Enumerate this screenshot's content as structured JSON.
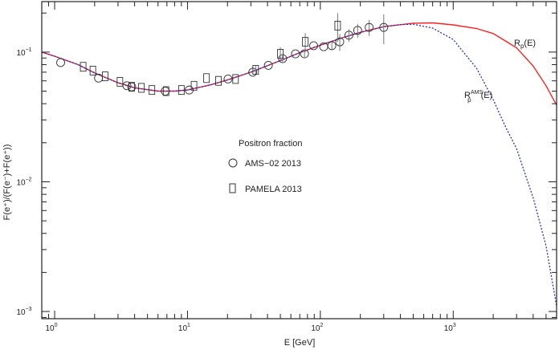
{
  "chart_data": {
    "type": "scatter",
    "title": "",
    "xlabel": "E [GeV]",
    "ylabel": "F(e⁺)/(F(e⁻)+F(e⁺))",
    "xscale": "log",
    "yscale": "log",
    "xlim": [
      0.8,
      6000
    ],
    "ylim": [
      0.00088,
      0.245
    ],
    "grid": false,
    "x_tick_labels": [
      {
        "v": 1,
        "base": "10",
        "exp": "0"
      },
      {
        "v": 10,
        "base": "10",
        "exp": "1"
      },
      {
        "v": 100,
        "base": "10",
        "exp": "2"
      },
      {
        "v": 1000,
        "base": "10",
        "exp": "3"
      }
    ],
    "y_tick_labels": [
      {
        "v": 0.1,
        "base": "10",
        "exp": "−1"
      },
      {
        "v": 0.01,
        "base": "10",
        "exp": "−2"
      },
      {
        "v": 0.001,
        "base": "10",
        "exp": "−3"
      }
    ],
    "legend": {
      "title": "Positron fraction",
      "placement": "center",
      "entries": [
        {
          "label": "AMS−02 2013",
          "marker": "circle"
        },
        {
          "label": "PAMELA 2013",
          "marker": "square"
        }
      ]
    },
    "series": [
      {
        "name": "AMS−02 2013",
        "marker": "circle",
        "points": [
          [
            1.11,
            0.083,
            0
          ],
          [
            2.14,
            0.063,
            0
          ],
          [
            3.5,
            0.055,
            0
          ],
          [
            3.8,
            0.054,
            0
          ],
          [
            6.8,
            0.05,
            0
          ],
          [
            10.3,
            0.051,
            0
          ],
          [
            20.2,
            0.062,
            0
          ],
          [
            31,
            0.07,
            0
          ],
          [
            40.6,
            0.079,
            0
          ],
          [
            52,
            0.089,
            0.005
          ],
          [
            65,
            0.097,
            0
          ],
          [
            76,
            0.097,
            0.006
          ],
          [
            89,
            0.112,
            0
          ],
          [
            106,
            0.11,
            0
          ],
          [
            122,
            0.112,
            0.008
          ],
          [
            140,
            0.12,
            0.018
          ],
          [
            164,
            0.135,
            0.015
          ],
          [
            191,
            0.147,
            0.018
          ],
          [
            233,
            0.155,
            0.022
          ],
          [
            300,
            0.155,
            0.04
          ]
        ]
      },
      {
        "name": "PAMELA 2013",
        "marker": "square",
        "points": [
          [
            1.64,
            0.077,
            0
          ],
          [
            1.94,
            0.072,
            0
          ],
          [
            2.4,
            0.065,
            0
          ],
          [
            3.1,
            0.059,
            0
          ],
          [
            3.8,
            0.054,
            0
          ],
          [
            4.5,
            0.053,
            0
          ],
          [
            5.4,
            0.051,
            0
          ],
          [
            6.9,
            0.05,
            0
          ],
          [
            9.0,
            0.051,
            0
          ],
          [
            11.2,
            0.055,
            0
          ],
          [
            13.9,
            0.063,
            0
          ],
          [
            17.1,
            0.06,
            0
          ],
          [
            23,
            0.062,
            0
          ],
          [
            32.6,
            0.073,
            0.006
          ],
          [
            50,
            0.097,
            0.012
          ],
          [
            77,
            0.12,
            0.02
          ],
          [
            135,
            0.16,
            0.04
          ]
        ]
      }
    ],
    "curves": [
      {
        "name": "Rp(E)",
        "label_base": "R",
        "label_sub": "p",
        "label_sup": "",
        "label_tail": "(E)",
        "color": "#ff2020",
        "style": "solid",
        "points": [
          [
            0.8,
            0.1
          ],
          [
            1,
            0.093
          ],
          [
            1.5,
            0.08
          ],
          [
            2,
            0.069
          ],
          [
            3,
            0.058
          ],
          [
            4,
            0.053
          ],
          [
            6,
            0.05
          ],
          [
            8,
            0.05
          ],
          [
            10,
            0.051
          ],
          [
            15,
            0.056
          ],
          [
            20,
            0.061
          ],
          [
            30,
            0.07
          ],
          [
            50,
            0.086
          ],
          [
            70,
            0.099
          ],
          [
            100,
            0.113
          ],
          [
            150,
            0.13
          ],
          [
            200,
            0.142
          ],
          [
            300,
            0.157
          ],
          [
            500,
            0.167
          ],
          [
            700,
            0.168
          ],
          [
            1000,
            0.162
          ],
          [
            1500,
            0.152
          ],
          [
            2000,
            0.139
          ],
          [
            3000,
            0.108
          ],
          [
            4000,
            0.078
          ],
          [
            5000,
            0.055
          ],
          [
            6000,
            0.039
          ]
        ]
      },
      {
        "name": "Rp^AMS(E)",
        "label_base": "R",
        "label_sub": "p",
        "label_sup": "AMS",
        "label_tail": "(E)",
        "color": "#2a2ad0",
        "style": "dotted",
        "points": [
          [
            0.8,
            0.1
          ],
          [
            1,
            0.093
          ],
          [
            1.5,
            0.08
          ],
          [
            2,
            0.069
          ],
          [
            3,
            0.058
          ],
          [
            4,
            0.053
          ],
          [
            6,
            0.05
          ],
          [
            8,
            0.05
          ],
          [
            10,
            0.051
          ],
          [
            15,
            0.056
          ],
          [
            20,
            0.061
          ],
          [
            30,
            0.07
          ],
          [
            50,
            0.086
          ],
          [
            70,
            0.099
          ],
          [
            100,
            0.113
          ],
          [
            150,
            0.13
          ],
          [
            200,
            0.142
          ],
          [
            300,
            0.157
          ],
          [
            400,
            0.163
          ],
          [
            500,
            0.164
          ],
          [
            700,
            0.153
          ],
          [
            1000,
            0.125
          ],
          [
            1500,
            0.075
          ],
          [
            2000,
            0.043
          ],
          [
            2500,
            0.026
          ],
          [
            3000,
            0.018
          ],
          [
            4000,
            0.0075
          ],
          [
            5000,
            0.0032
          ],
          [
            6000,
            0.0011
          ]
        ]
      }
    ]
  }
}
